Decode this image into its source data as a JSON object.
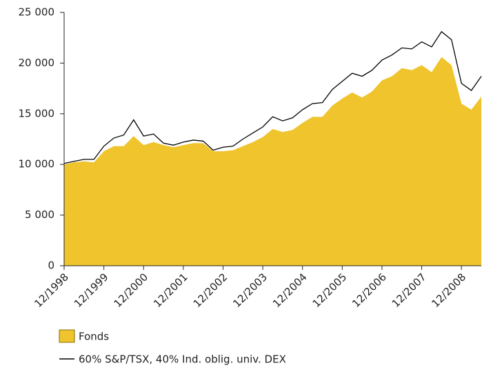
{
  "chart_data": {
    "type": "area_line",
    "categories": [
      "12/1998",
      null,
      null,
      null,
      "12/1999",
      null,
      null,
      null,
      "12/2000",
      null,
      null,
      null,
      "12/2001",
      null,
      null,
      null,
      "12/2002",
      null,
      null,
      null,
      "12/2003",
      null,
      null,
      null,
      "12/2004",
      null,
      null,
      null,
      "12/2005",
      null,
      null,
      null,
      "12/2006",
      null,
      null,
      null,
      "12/2007",
      null,
      null,
      null,
      "12/2008",
      null,
      null
    ],
    "series": [
      {
        "name": "Fonds",
        "color": "#efc42c",
        "values": [
          10000,
          10200,
          10300,
          10200,
          11300,
          11800,
          11800,
          12800,
          11900,
          12200,
          11900,
          11700,
          11900,
          12100,
          12100,
          11300,
          11300,
          11400,
          11800,
          12200,
          12700,
          13500,
          13200,
          13400,
          14100,
          14700,
          14700,
          15800,
          16500,
          17100,
          16600,
          17200,
          18300,
          18700,
          19500,
          19300,
          19800,
          19100,
          20600,
          19800,
          16000,
          15400,
          16700
        ]
      },
      {
        "name": "60% S&P/TSX, 40% Ind. oblig. univ. DEX",
        "color": "#000000",
        "values": [
          10100,
          10300,
          10500,
          10500,
          11800,
          12600,
          12900,
          14400,
          12800,
          13000,
          12100,
          11900,
          12200,
          12400,
          12300,
          11400,
          11700,
          11800,
          12500,
          13100,
          13700,
          14700,
          14300,
          14600,
          15400,
          16000,
          16100,
          17400,
          18200,
          19000,
          18700,
          19300,
          20300,
          20800,
          21500,
          21400,
          22100,
          21600,
          23100,
          22300,
          18000,
          17300,
          18700
        ]
      }
    ],
    "ylim": [
      0,
      25000
    ],
    "yticks": [
      0,
      {
        "value": 5000,
        "label": "5 000"
      },
      {
        "value": 10000,
        "label": "10 000"
      },
      {
        "value": 15000,
        "label": "15 000"
      },
      {
        "value": 20000,
        "label": "20 000"
      },
      {
        "value": 25000,
        "label": "25 000"
      }
    ]
  }
}
